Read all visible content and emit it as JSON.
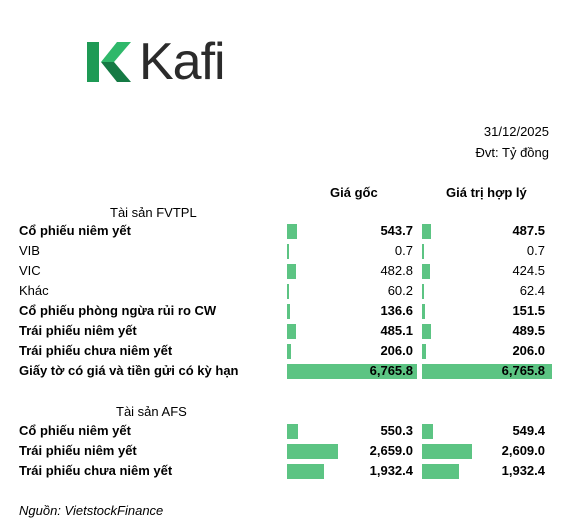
{
  "logo": {
    "text": "Kafi",
    "mark_icon": "kafi-k-mark",
    "brand_color": "#1aa05a"
  },
  "header": {
    "date": "31/12/2025",
    "unit": "Đvt: Tỷ đồng"
  },
  "columns": {
    "cost": "Giá gốc",
    "fair_value": "Giá trị hợp lý"
  },
  "bar_color": "#5cc483",
  "bar_scale_max": 6765.8,
  "fvtpl": {
    "title": "Tài sản FVTPL",
    "rows": [
      {
        "label": "Cổ phiếu niêm yết",
        "bold": true,
        "cost": "543.7",
        "cost_value": 543.7,
        "fair": "487.5",
        "fair_value": 487.5
      },
      {
        "label": "VIB",
        "bold": false,
        "cost": "0.7",
        "cost_value": 0.7,
        "fair": "0.7",
        "fair_value": 0.7
      },
      {
        "label": "VIC",
        "bold": false,
        "cost": "482.8",
        "cost_value": 482.8,
        "fair": "424.5",
        "fair_value": 424.5
      },
      {
        "label": "Khác",
        "bold": false,
        "cost": "60.2",
        "cost_value": 60.2,
        "fair": "62.4",
        "fair_value": 62.4
      },
      {
        "label": "Cổ phiếu phòng ngừa rủi ro CW",
        "bold": true,
        "cost": "136.6",
        "cost_value": 136.6,
        "fair": "151.5",
        "fair_value": 151.5
      },
      {
        "label": "Trái phiếu niêm yết",
        "bold": true,
        "cost": "485.1",
        "cost_value": 485.1,
        "fair": "489.5",
        "fair_value": 489.5
      },
      {
        "label": "Trái phiếu chưa niêm yết",
        "bold": true,
        "cost": "206.0",
        "cost_value": 206.0,
        "fair": "206.0",
        "fair_value": 206.0
      },
      {
        "label": "Giấy tờ có giá và tiền gửi có kỳ hạn",
        "bold": true,
        "cost": "6,765.8",
        "cost_value": 6765.8,
        "fair": "6,765.8",
        "fair_value": 6765.8
      }
    ]
  },
  "afs": {
    "title": "Tài sản AFS",
    "rows": [
      {
        "label": "Cổ phiếu niêm yết",
        "bold": true,
        "cost": "550.3",
        "cost_value": 550.3,
        "fair": "549.4",
        "fair_value": 549.4
      },
      {
        "label": "Trái phiếu niêm yết",
        "bold": true,
        "cost": "2,659.0",
        "cost_value": 2659.0,
        "fair": "2,609.0",
        "fair_value": 2609.0
      },
      {
        "label": "Trái phiếu chưa niêm yết",
        "bold": true,
        "cost": "1,932.4",
        "cost_value": 1932.4,
        "fair": "1,932.4",
        "fair_value": 1932.4
      }
    ]
  },
  "footer": {
    "source": "Nguồn: VietstockFinance"
  }
}
